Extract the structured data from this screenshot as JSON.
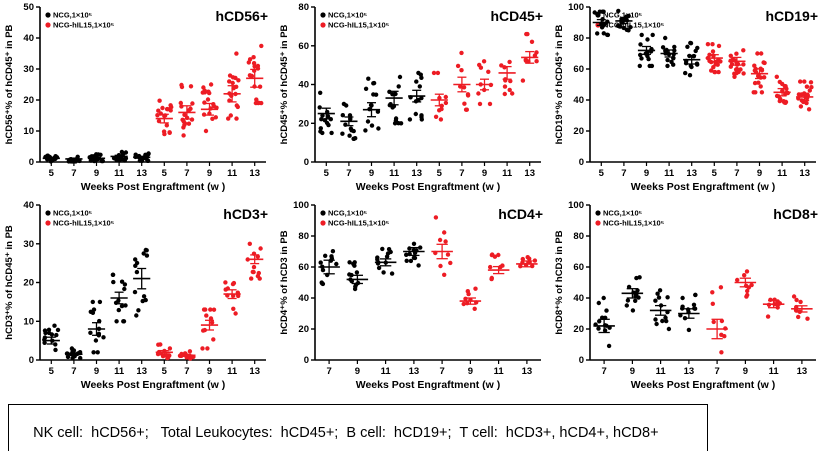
{
  "figure": {
    "caption": "NK cell:  hCD56+;   Total Leukocytes:  hCD45+;  B cell:  hCD19+;  T cell:  hCD3+, hCD4+, hCD8+",
    "xlabel": "Weeks Post Engraftment (w )",
    "legend": [
      {
        "label": "NCG,1×10⁵",
        "color": "#000000"
      },
      {
        "label": "NCG-hIL15,1×10⁵",
        "color": "#ED1C24"
      }
    ],
    "colors": {
      "ncg": "#000000",
      "ncg_hil15": "#ED1C24"
    }
  },
  "chart_data": [
    {
      "type": "scatter",
      "title": "hCD56+",
      "ylabel": "hCD56⁺% of hCD45⁺ in PB",
      "ylim": [
        0,
        50
      ],
      "yticks": [
        0,
        10,
        20,
        30,
        40,
        50
      ],
      "categories": [
        "5",
        "7",
        "9",
        "11",
        "13"
      ],
      "series": [
        {
          "name": "NCG,1×10⁵",
          "color": "#000000",
          "n": 16,
          "groups": [
            {
              "mean": 1.2,
              "lo": 0.2,
              "hi": 2.5
            },
            {
              "mean": 1.0,
              "lo": 0.2,
              "hi": 2.2
            },
            {
              "mean": 1.2,
              "lo": 0.3,
              "hi": 2.5
            },
            {
              "mean": 1.8,
              "lo": 0.5,
              "hi": 3.5
            },
            {
              "mean": 1.5,
              "lo": 0.4,
              "hi": 3.0
            }
          ]
        },
        {
          "name": "NCG-hIL15,1×10⁵",
          "color": "#ED1C24",
          "n": 18,
          "groups": [
            {
              "mean": 14,
              "lo": 9,
              "hi": 20
            },
            {
              "mean": 16,
              "lo": 8,
              "hi": 25
            },
            {
              "mean": 17,
              "lo": 10,
              "hi": 25
            },
            {
              "mean": 22,
              "lo": 14,
              "hi": 35
            },
            {
              "mean": 27,
              "lo": 19,
              "hi": 42
            }
          ]
        }
      ]
    },
    {
      "type": "scatter",
      "title": "hCD45+",
      "ylabel": "hCD45⁺% of hCD45⁺ in PB",
      "ylim": [
        0,
        80
      ],
      "yticks": [
        0,
        20,
        40,
        60,
        80
      ],
      "categories": [
        "5",
        "7",
        "9",
        "11",
        "13"
      ],
      "series": [
        {
          "name": "NCG,1×10⁵",
          "color": "#000000",
          "n": 14,
          "groups": [
            {
              "mean": 25,
              "lo": 15,
              "hi": 37
            },
            {
              "mean": 21,
              "lo": 12,
              "hi": 30
            },
            {
              "mean": 27,
              "lo": 14,
              "hi": 43
            },
            {
              "mean": 33,
              "lo": 20,
              "hi": 48
            },
            {
              "mean": 34,
              "lo": 22,
              "hi": 46
            }
          ]
        },
        {
          "name": "NCG-hIL15,1×10⁵",
          "color": "#ED1C24",
          "n": 10,
          "groups": [
            {
              "mean": 32,
              "lo": 22,
              "hi": 46
            },
            {
              "mean": 40,
              "lo": 27,
              "hi": 57
            },
            {
              "mean": 40,
              "lo": 30,
              "hi": 52
            },
            {
              "mean": 46,
              "lo": 34,
              "hi": 60
            },
            {
              "mean": 54,
              "lo": 42,
              "hi": 66
            }
          ]
        }
      ]
    },
    {
      "type": "scatter",
      "title": "hCD19+",
      "ylabel": "hCD19⁺% of hCD45⁺ in PB",
      "ylim": [
        0,
        100
      ],
      "yticks": [
        0,
        20,
        40,
        60,
        80,
        100
      ],
      "categories": [
        "5",
        "7",
        "9",
        "11",
        "13"
      ],
      "series": [
        {
          "name": "NCG,1×10⁵",
          "color": "#000000",
          "n": 16,
          "groups": [
            {
              "mean": 90,
              "lo": 82,
              "hi": 97
            },
            {
              "mean": 91,
              "lo": 85,
              "hi": 98
            },
            {
              "mean": 72,
              "lo": 62,
              "hi": 82
            },
            {
              "mean": 70,
              "lo": 62,
              "hi": 80
            },
            {
              "mean": 66,
              "lo": 56,
              "hi": 78
            }
          ]
        },
        {
          "name": "NCG-hIL15,1×10⁵",
          "color": "#ED1C24",
          "n": 20,
          "groups": [
            {
              "mean": 67,
              "lo": 58,
              "hi": 76
            },
            {
              "mean": 65,
              "lo": 55,
              "hi": 75
            },
            {
              "mean": 57,
              "lo": 45,
              "hi": 70
            },
            {
              "mean": 45,
              "lo": 36,
              "hi": 55
            },
            {
              "mean": 42,
              "lo": 33,
              "hi": 52
            }
          ]
        }
      ]
    },
    {
      "type": "scatter",
      "title": "hCD3+",
      "ylabel": "hCD3⁺% of hCD45⁺ in PB",
      "ylim": [
        0,
        40
      ],
      "yticks": [
        0,
        10,
        20,
        30,
        40
      ],
      "categories": [
        "5",
        "7",
        "9",
        "11",
        "13"
      ],
      "series": [
        {
          "name": "NCG,1×10⁵",
          "color": "#000000",
          "n": 14,
          "groups": [
            {
              "mean": 5,
              "lo": 2,
              "hi": 9
            },
            {
              "mean": 1.5,
              "lo": 0.5,
              "hi": 3
            },
            {
              "mean": 8,
              "lo": 2,
              "hi": 15
            },
            {
              "mean": 16,
              "lo": 10,
              "hi": 22
            },
            {
              "mean": 21,
              "lo": 11,
              "hi": 32
            }
          ]
        },
        {
          "name": "NCG-hIL15,1×10⁵",
          "color": "#ED1C24",
          "n": 12,
          "groups": [
            {
              "mean": 2,
              "lo": 0.5,
              "hi": 4
            },
            {
              "mean": 1.2,
              "lo": 0.3,
              "hi": 2.5
            },
            {
              "mean": 9,
              "lo": 3,
              "hi": 13
            },
            {
              "mean": 17,
              "lo": 12,
              "hi": 21
            },
            {
              "mean": 26,
              "lo": 21,
              "hi": 30
            }
          ]
        }
      ]
    },
    {
      "type": "scatter",
      "title": "hCD4+",
      "ylabel": "hCD4⁺% of hCD3 in PB",
      "ylim": [
        0,
        100
      ],
      "yticks": [
        0,
        20,
        40,
        60,
        80,
        100
      ],
      "categories": [
        "7",
        "9",
        "11",
        "13"
      ],
      "series": [
        {
          "name": "NCG,1×10⁵",
          "color": "#000000",
          "n": 13,
          "groups": [
            {
              "mean": 60,
              "lo": 45,
              "hi": 80
            },
            {
              "mean": 52,
              "lo": 42,
              "hi": 63
            },
            {
              "mean": 63,
              "lo": 55,
              "hi": 73
            },
            {
              "mean": 70,
              "lo": 60,
              "hi": 80
            }
          ]
        },
        {
          "name": "NCG-hIL15,1×10⁵",
          "color": "#ED1C24",
          "n": 9,
          "groups": [
            {
              "mean": 70,
              "lo": 55,
              "hi": 92
            },
            {
              "mean": 38,
              "lo": 30,
              "hi": 46
            },
            {
              "mean": 58,
              "lo": 50,
              "hi": 68
            },
            {
              "mean": 62,
              "lo": 55,
              "hi": 70
            }
          ]
        }
      ]
    },
    {
      "type": "scatter",
      "title": "hCD8+",
      "ylabel": "hCD8⁺% of hCD3 in PB",
      "ylim": [
        0,
        100
      ],
      "yticks": [
        0,
        20,
        40,
        60,
        80,
        100
      ],
      "categories": [
        "7",
        "9",
        "11",
        "13"
      ],
      "series": [
        {
          "name": "NCG,1×10⁵",
          "color": "#000000",
          "n": 13,
          "groups": [
            {
              "mean": 22,
              "lo": 6,
              "hi": 40
            },
            {
              "mean": 43,
              "lo": 32,
              "hi": 56
            },
            {
              "mean": 32,
              "lo": 20,
              "hi": 45
            },
            {
              "mean": 30,
              "lo": 18,
              "hi": 42
            }
          ]
        },
        {
          "name": "NCG-hIL15,1×10⁵",
          "color": "#ED1C24",
          "n": 9,
          "groups": [
            {
              "mean": 20,
              "lo": 5,
              "hi": 55
            },
            {
              "mean": 50,
              "lo": 40,
              "hi": 62
            },
            {
              "mean": 36,
              "lo": 28,
              "hi": 46
            },
            {
              "mean": 33,
              "lo": 25,
              "hi": 41
            }
          ]
        }
      ]
    }
  ]
}
